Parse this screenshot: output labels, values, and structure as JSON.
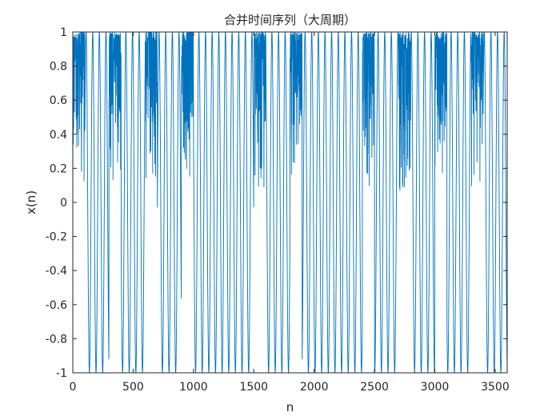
{
  "chart_data": {
    "type": "line",
    "title": "合并时间序列（大周期）",
    "xlabel": "n",
    "ylabel": "x(n)",
    "xlim": [
      0,
      3600
    ],
    "ylim": [
      -1,
      1
    ],
    "xticks": [
      0,
      500,
      1000,
      1500,
      2000,
      2500,
      3000,
      3500
    ],
    "xtick_labels": [
      "0",
      "500",
      "1000",
      "1500",
      "2000",
      "2500",
      "3000",
      "3500"
    ],
    "yticks": [
      -1,
      -0.8,
      -0.6,
      -0.4,
      -0.2,
      0,
      0.2,
      0.4,
      0.6,
      0.8,
      1
    ],
    "ytick_labels": [
      "-1",
      "-0.8",
      "-0.6",
      "-0.4",
      "-0.2",
      "0",
      "0.2",
      "0.4",
      "0.6",
      "0.8",
      "1"
    ],
    "grid": false,
    "series": [
      {
        "color": "#0072BD",
        "description_of_shape": "chaotic logistic-like sequence: dense bursts in [0,1] alternating with sweeping oscillations down to -1",
        "dense_bursts": [
          {
            "x": [
              0,
              100
            ],
            "y_range": [
              0.0,
              1.0
            ]
          },
          {
            "x": [
              300,
              400
            ],
            "y_range": [
              0.07,
              1.0
            ]
          },
          {
            "x": [
              600,
              700
            ],
            "y_range": [
              0.05,
              1.0
            ]
          },
          {
            "x": [
              900,
              1000
            ],
            "y_range": [
              0.06,
              1.0
            ]
          },
          {
            "x": [
              1500,
              1600
            ],
            "y_range": [
              0.07,
              1.0
            ]
          },
          {
            "x": [
              1800,
              1900
            ],
            "y_range": [
              0.05,
              1.0
            ]
          },
          {
            "x": [
              2400,
              2500
            ],
            "y_range": [
              0.07,
              1.0
            ]
          },
          {
            "x": [
              2700,
              2800
            ],
            "y_range": [
              0.05,
              1.0
            ]
          },
          {
            "x": [
              3000,
              3100
            ],
            "y_range": [
              0.08,
              1.0
            ]
          },
          {
            "x": [
              3300,
              3400
            ],
            "y_range": [
              0.06,
              1.0
            ]
          }
        ],
        "oscillation_period": 55,
        "oscillation_range": [
          -1,
          1
        ]
      }
    ]
  }
}
